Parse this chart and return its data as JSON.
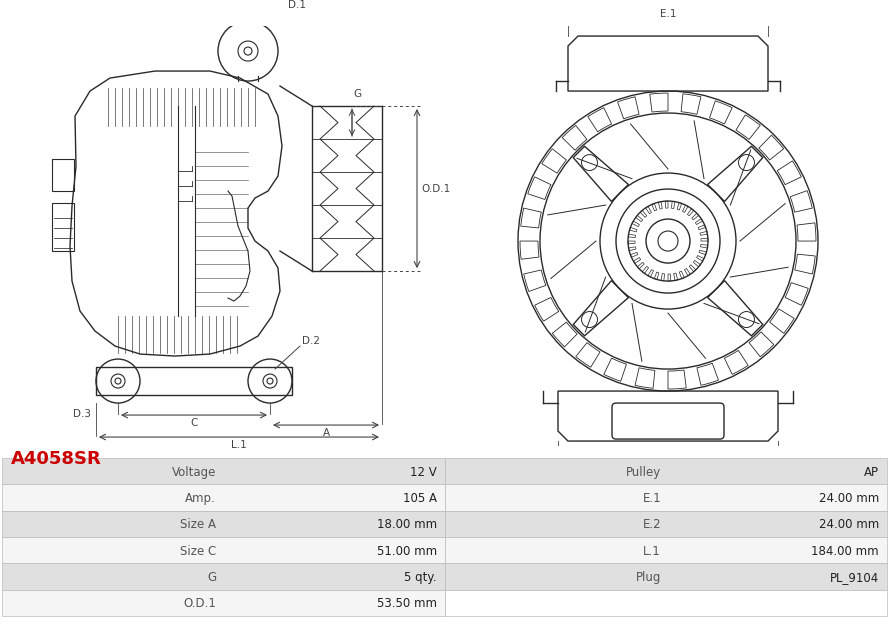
{
  "title": "A4058SR",
  "title_color": "#cc0000",
  "bg_color": "#ffffff",
  "line_color": "#2a2a2a",
  "dim_color": "#444444",
  "table": {
    "left_col1_label": [
      "Voltage",
      "Amp.",
      "Size A",
      "Size C",
      "G",
      "O.D.1"
    ],
    "left_col2_value": [
      "12 V",
      "105 A",
      "18.00 mm",
      "51.00 mm",
      "5 qty.",
      "53.50 mm"
    ],
    "right_col1_label": [
      "Pulley",
      "E.1",
      "E.2",
      "L.1",
      "Plug",
      ""
    ],
    "right_col2_value": [
      "AP",
      "24.00 mm",
      "24.00 mm",
      "184.00 mm",
      "PL_9104",
      ""
    ]
  },
  "row_colors": [
    "#e0e0e0",
    "#f5f5f5",
    "#e0e0e0",
    "#f5f5f5",
    "#e0e0e0",
    "#f5f5f5"
  ],
  "right_row_colors": [
    "#e0e0e0",
    "#f5f5f5",
    "#e0e0e0",
    "#f5f5f5",
    "#e0e0e0",
    "#f5f5f5"
  ],
  "table_border_color": "#bbbbbb",
  "label_color": "#555555",
  "value_color": "#222222"
}
